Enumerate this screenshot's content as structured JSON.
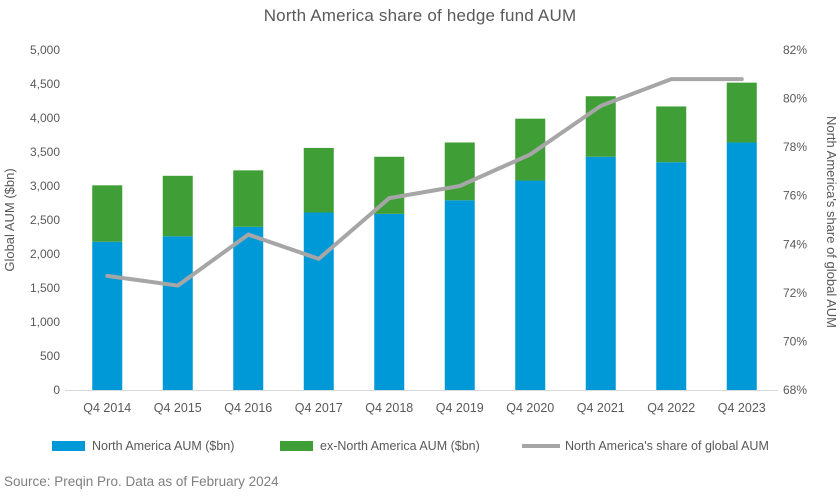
{
  "title": "North America share of hedge fund AUM",
  "source_note": "Source: Preqin Pro. Data as of February 2024",
  "colors": {
    "north_america_bar": "#0099D8",
    "ex_north_america_bar": "#3F9E35",
    "share_line": "#A6A6A6",
    "text": "#595959",
    "source_text": "#7F7F7F",
    "axis_line": "#D9D9D9"
  },
  "chart_data": {
    "type": "bar",
    "subtype": "stacked-bar-with-line-combo",
    "title": "North America share of hedge fund AUM",
    "categories": [
      "Q4 2014",
      "Q4 2015",
      "Q4 2016",
      "Q4 2017",
      "Q4 2018",
      "Q4 2019",
      "Q4 2020",
      "Q4 2021",
      "Q4 2022",
      "Q4 2023"
    ],
    "series": [
      {
        "name": "North America AUM ($bn)",
        "type": "bar",
        "stack": "aum",
        "axis": "left",
        "values": [
          2180,
          2260,
          2400,
          2610,
          2590,
          2790,
          3080,
          3430,
          3350,
          3640
        ]
      },
      {
        "name": "ex-North America AUM ($bn)",
        "type": "bar",
        "stack": "aum",
        "axis": "left",
        "values": [
          830,
          890,
          830,
          950,
          840,
          850,
          910,
          890,
          820,
          880
        ]
      },
      {
        "name": "North America's share of global AUM",
        "type": "line",
        "axis": "right",
        "values": [
          72.7,
          72.3,
          74.4,
          73.4,
          75.9,
          76.4,
          77.7,
          79.7,
          80.8,
          80.8
        ]
      }
    ],
    "left_axis": {
      "title": "Global AUM ($bn)",
      "min": 0,
      "max": 5000,
      "step": 500,
      "format": "thousands"
    },
    "right_axis": {
      "title": "North America's share of global AUM",
      "min": 68,
      "max": 82,
      "step": 2,
      "format": "percent"
    },
    "grid": false,
    "legend_position": "bottom"
  },
  "legend": [
    {
      "label": "North America AUM ($bn)",
      "swatch": "bar",
      "color_key": "north_america_bar"
    },
    {
      "label": "ex-North America AUM ($bn)",
      "swatch": "bar",
      "color_key": "ex_north_america_bar"
    },
    {
      "label": "North America's share of global AUM",
      "swatch": "line",
      "color_key": "share_line"
    }
  ]
}
